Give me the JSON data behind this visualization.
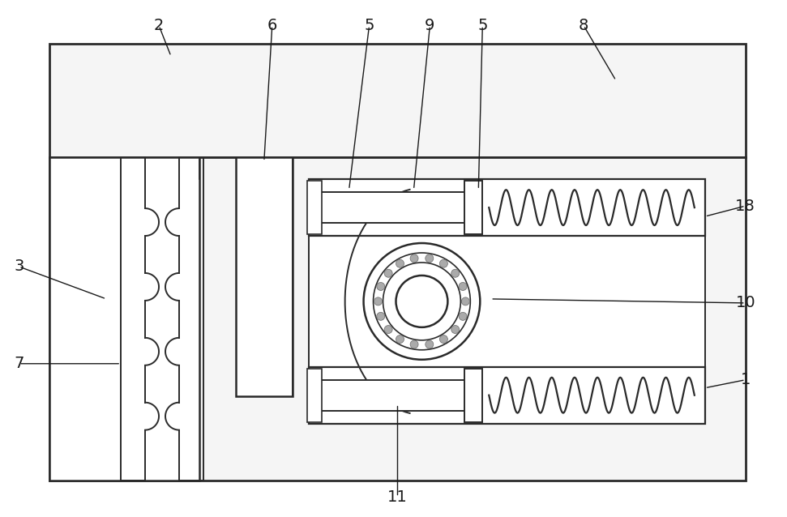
{
  "bg_color": "#ffffff",
  "line_color": "#2a2a2a",
  "label_color": "#1a1a1a",
  "fig_width": 9.71,
  "fig_height": 6.38,
  "lw": 1.4
}
